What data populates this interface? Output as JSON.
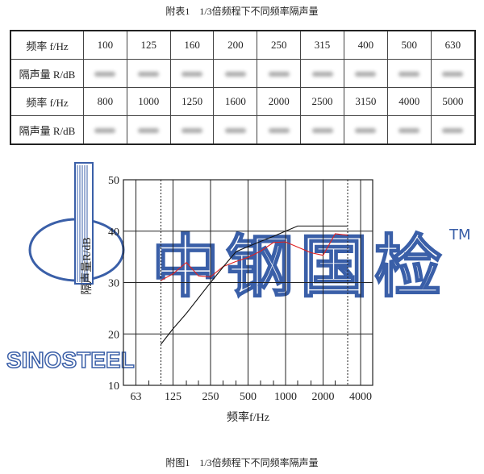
{
  "table_caption": "附表1　1/3倍频程下不同频率隔声量",
  "table": {
    "freq_label": "频率 f/Hz",
    "r_label": "隔声量 R/dB",
    "freq_row1": [
      "100",
      "125",
      "160",
      "200",
      "250",
      "315",
      "400",
      "500",
      "630"
    ],
    "freq_row2": [
      "800",
      "1000",
      "1250",
      "1600",
      "2000",
      "2500",
      "3150",
      "4000",
      "5000"
    ],
    "r_values_note": "blurred"
  },
  "figure_caption": "附图1　1/3倍频程下不同频率隔声量",
  "watermark": {
    "brand_cn": "中钢国检",
    "brand_en": "SINOSTEEL",
    "tm": "TM",
    "color": "#3a5fa8"
  },
  "chart_data": {
    "type": "line",
    "xlabel": "频率f/Hz",
    "ylabel": "隔声量R/dB",
    "xscale": "log",
    "xlim": [
      50,
      5000
    ],
    "ylim": [
      10,
      50
    ],
    "xticks": [
      "63",
      "125",
      "250",
      "500",
      "1000",
      "2000",
      "4000"
    ],
    "yticks": [
      "10",
      "20",
      "30",
      "40",
      "50"
    ],
    "grid": true,
    "dashed_verticals": [
      100,
      3150
    ],
    "x": [
      100,
      125,
      160,
      200,
      250,
      315,
      400,
      500,
      630,
      800,
      1000,
      1250,
      1600,
      2000,
      2500,
      3150
    ],
    "series": [
      {
        "color": "#e02020",
        "values": [
          30.4,
          31.7,
          33.9,
          31.3,
          31.1,
          33.1,
          34.1,
          34.9,
          36.1,
          37.8,
          37.9,
          36.9,
          35.8,
          35.3,
          39.5,
          39.2
        ]
      },
      {
        "color": "#111111",
        "values": [
          18,
          21,
          24,
          27,
          30,
          33,
          36,
          37,
          38,
          39,
          40,
          41,
          41,
          41,
          41,
          41
        ]
      }
    ]
  }
}
